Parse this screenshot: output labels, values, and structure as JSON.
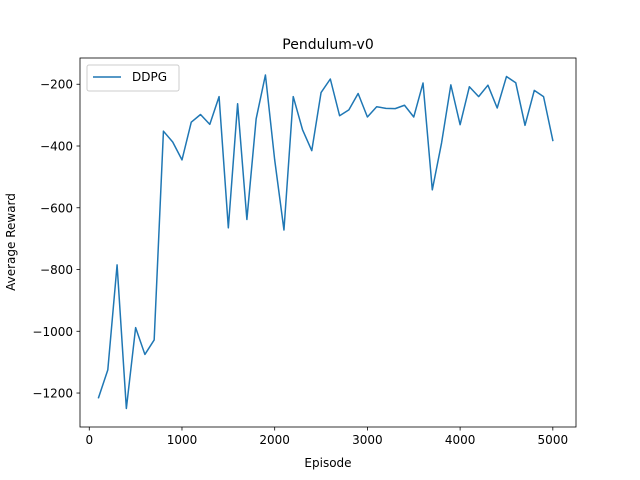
{
  "chart_data": {
    "type": "line",
    "title": "Pendulum-v0",
    "xlabel": "Episode",
    "ylabel": "Average Reward",
    "xlim": [
      -100,
      5250
    ],
    "ylim": [
      -1310,
      -115
    ],
    "x_ticks": [
      0,
      1000,
      2000,
      3000,
      4000,
      5000
    ],
    "y_ticks": [
      -1200,
      -1000,
      -800,
      -600,
      -400,
      -200
    ],
    "legend_position": "top-left",
    "grid": false,
    "series": [
      {
        "name": "DDPG",
        "color": "#1f77b4",
        "x": [
          100,
          200,
          300,
          400,
          500,
          600,
          700,
          800,
          900,
          1000,
          1100,
          1200,
          1300,
          1400,
          1500,
          1600,
          1700,
          1800,
          1900,
          2000,
          2100,
          2200,
          2300,
          2400,
          2500,
          2600,
          2700,
          2800,
          2900,
          3000,
          3100,
          3200,
          3300,
          3400,
          3500,
          3600,
          3700,
          3800,
          3900,
          4000,
          4100,
          4200,
          4300,
          4400,
          4500,
          4600,
          4700,
          4800,
          4900,
          5000
        ],
        "y": [
          -1215,
          -1125,
          -785,
          -1250,
          -988,
          -1075,
          -1028,
          -352,
          -387,
          -445,
          -323,
          -298,
          -330,
          -240,
          -665,
          -263,
          -638,
          -312,
          -170,
          -445,
          -672,
          -240,
          -347,
          -415,
          -227,
          -183,
          -302,
          -283,
          -230,
          -306,
          -273,
          -278,
          -279,
          -268,
          -306,
          -196,
          -542,
          -390,
          -202,
          -331,
          -208,
          -240,
          -203,
          -277,
          -175,
          -195,
          -333,
          -220,
          -240,
          -382
        ]
      }
    ]
  }
}
